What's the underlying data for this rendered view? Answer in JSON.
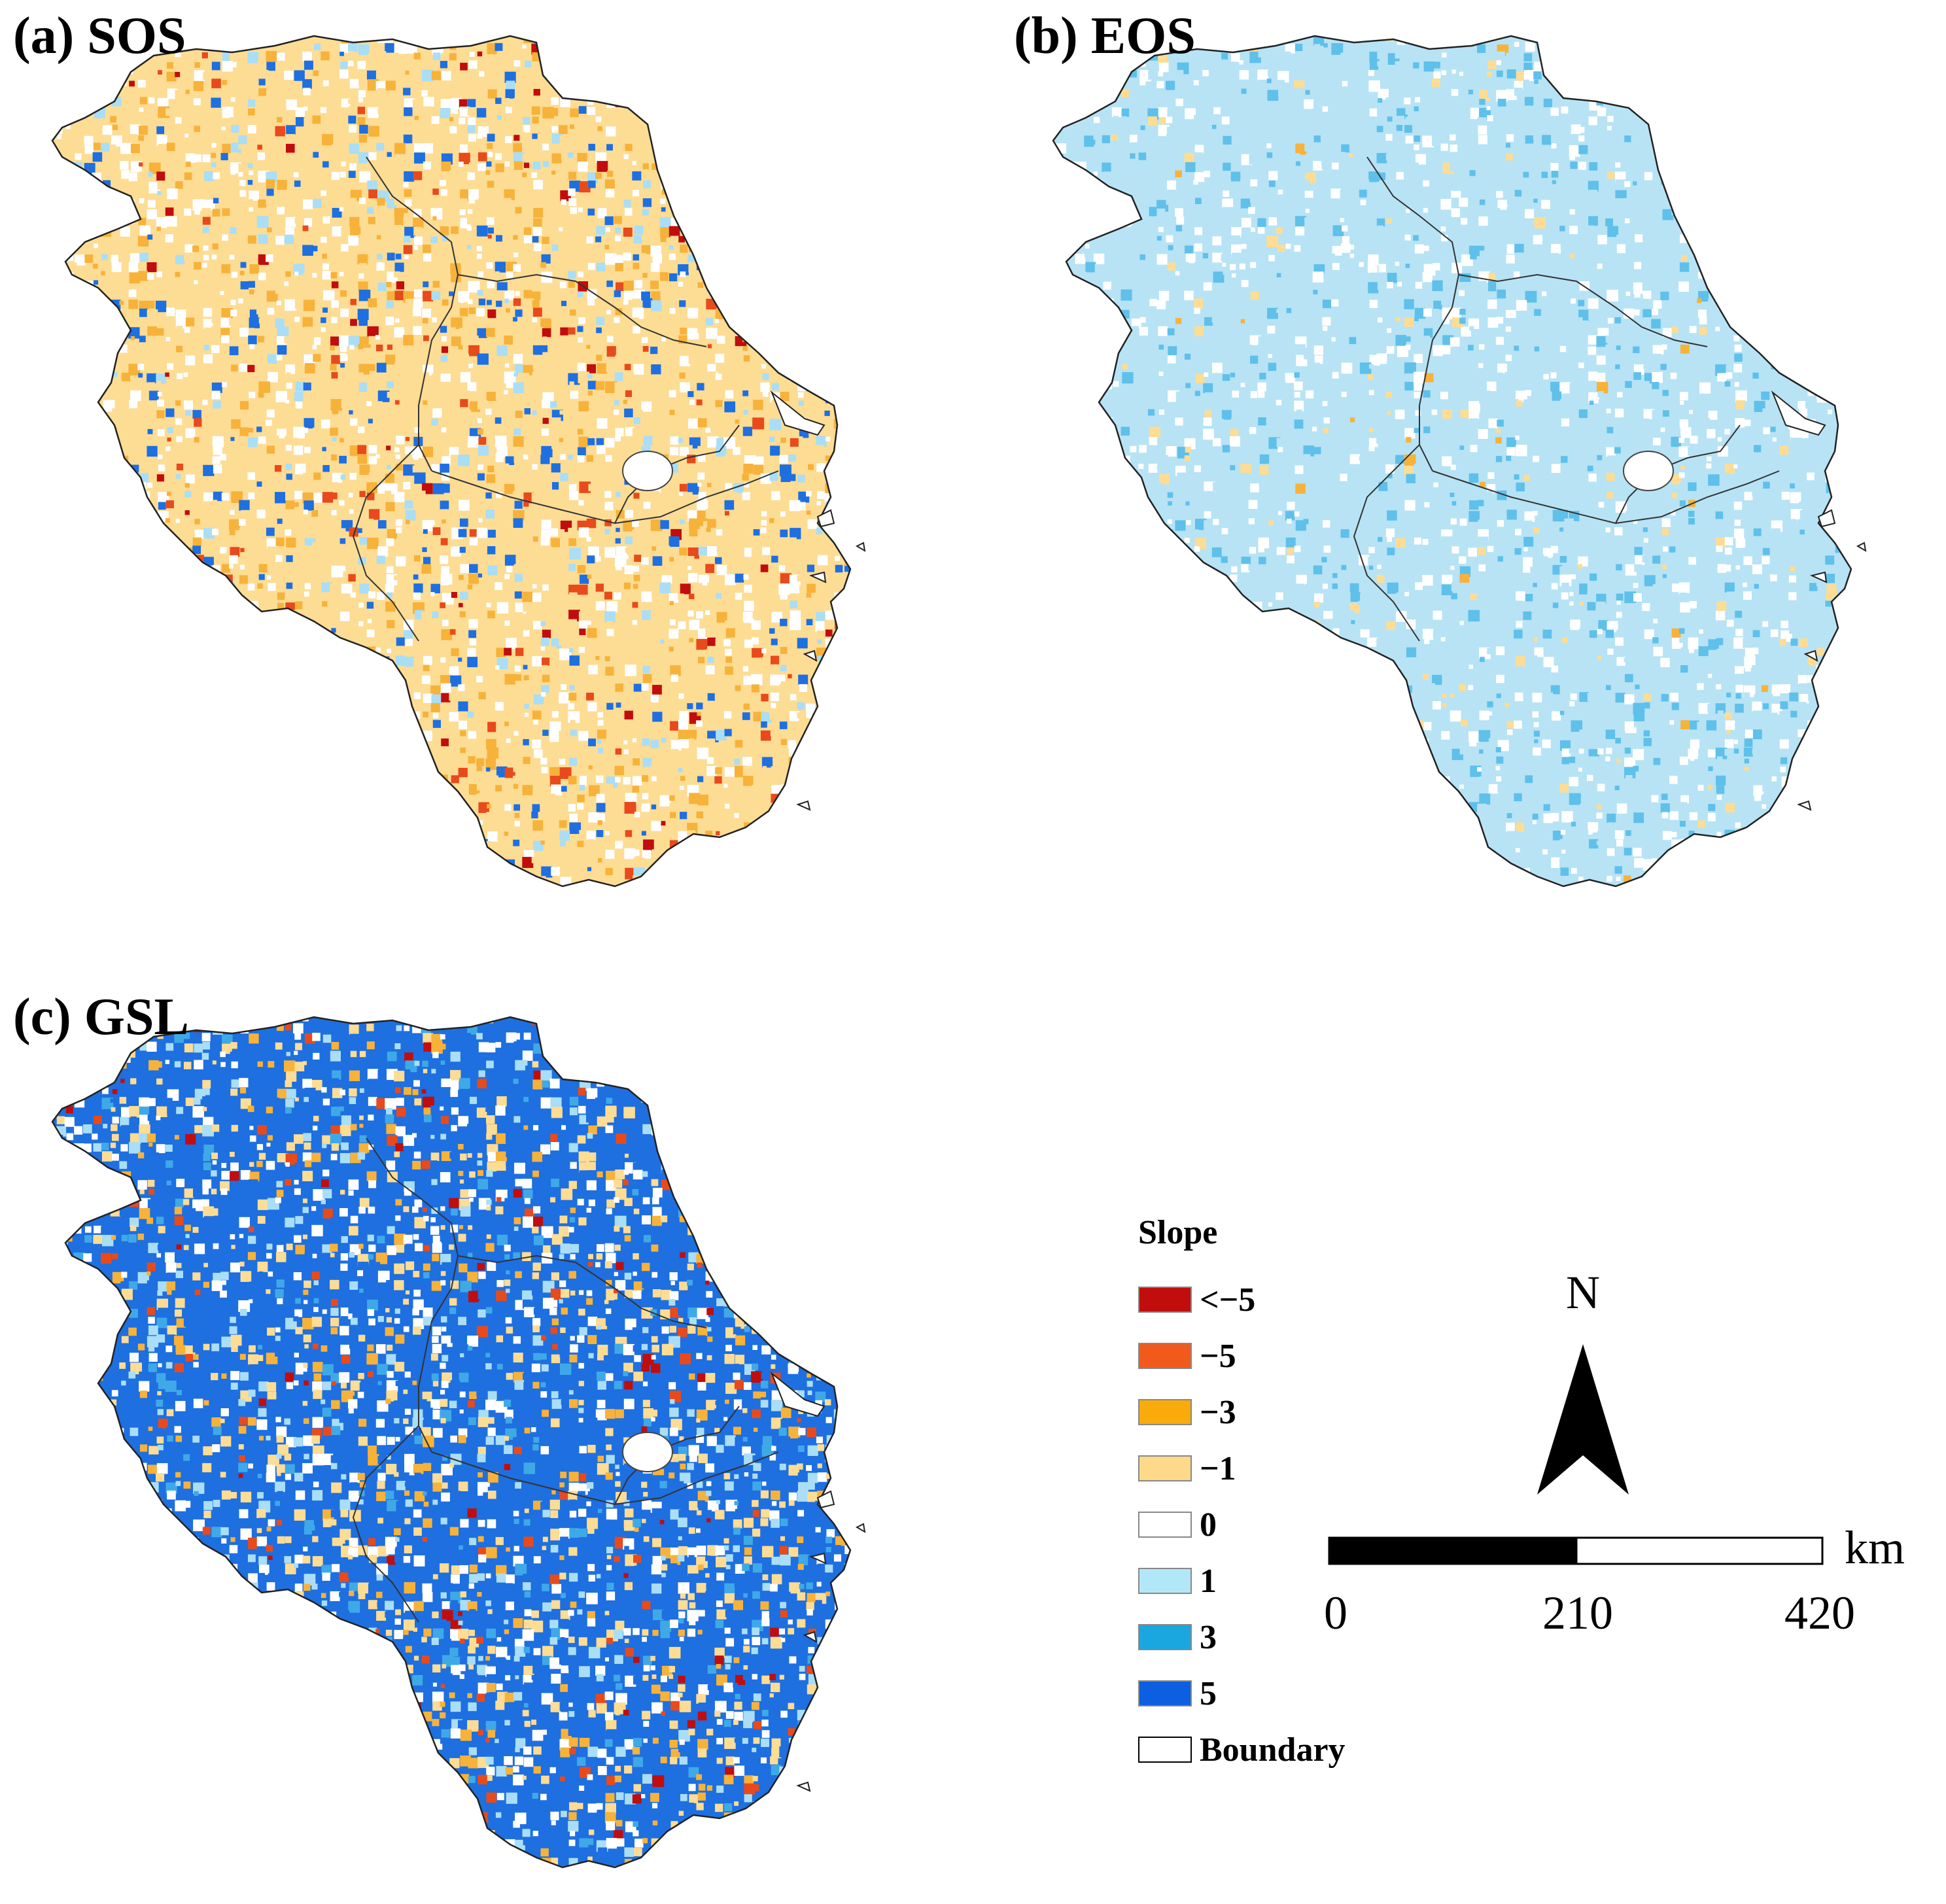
{
  "panels": [
    {
      "id": "a",
      "title": "(a) SOS",
      "map": {
        "dominant": [
          "#fddc94",
          "#ffffff",
          "#f7b23a",
          "#1e6fe0",
          "#a9def6",
          "#e84a1b",
          "#c10d0d"
        ],
        "weights": [
          36,
          28,
          14,
          9,
          7,
          4,
          2
        ]
      }
    },
    {
      "id": "b",
      "title": "(b) EOS",
      "map": {
        "dominant": [
          "#b7e3f5",
          "#ffffff",
          "#5fc0ea",
          "#fddc94",
          "#f7b23a"
        ],
        "weights": [
          58,
          24,
          13,
          4,
          1
        ]
      }
    },
    {
      "id": "c",
      "title": "(c) GSL",
      "map": {
        "dominant": [
          "#1e6fe0",
          "#ffffff",
          "#fddc94",
          "#a9def6",
          "#f7b23a",
          "#3fa9e8",
          "#e84a1b",
          "#c10d0d"
        ],
        "weights": [
          26,
          22,
          18,
          12,
          9,
          7,
          4,
          2
        ]
      }
    }
  ],
  "legend": {
    "title": "Slope",
    "items": [
      {
        "label": "<−5",
        "color": "#c10d0d"
      },
      {
        "label": "−5",
        "color": "#f25a1c"
      },
      {
        "label": "−3",
        "color": "#f9ab0b"
      },
      {
        "label": "−1",
        "color": "#fed98a"
      },
      {
        "label": "0",
        "color": "#ffffff"
      },
      {
        "label": "1",
        "color": "#b2e7f8"
      },
      {
        "label": "3",
        "color": "#1aa7e0"
      },
      {
        "label": "5",
        "color": "#0c5fe1"
      },
      {
        "label": "Boundary",
        "color": "#ffffff"
      }
    ]
  },
  "north_arrow": {
    "label": "N"
  },
  "scale_bar": {
    "unit": "km",
    "ticks": [
      "0",
      "210",
      "420"
    ]
  }
}
